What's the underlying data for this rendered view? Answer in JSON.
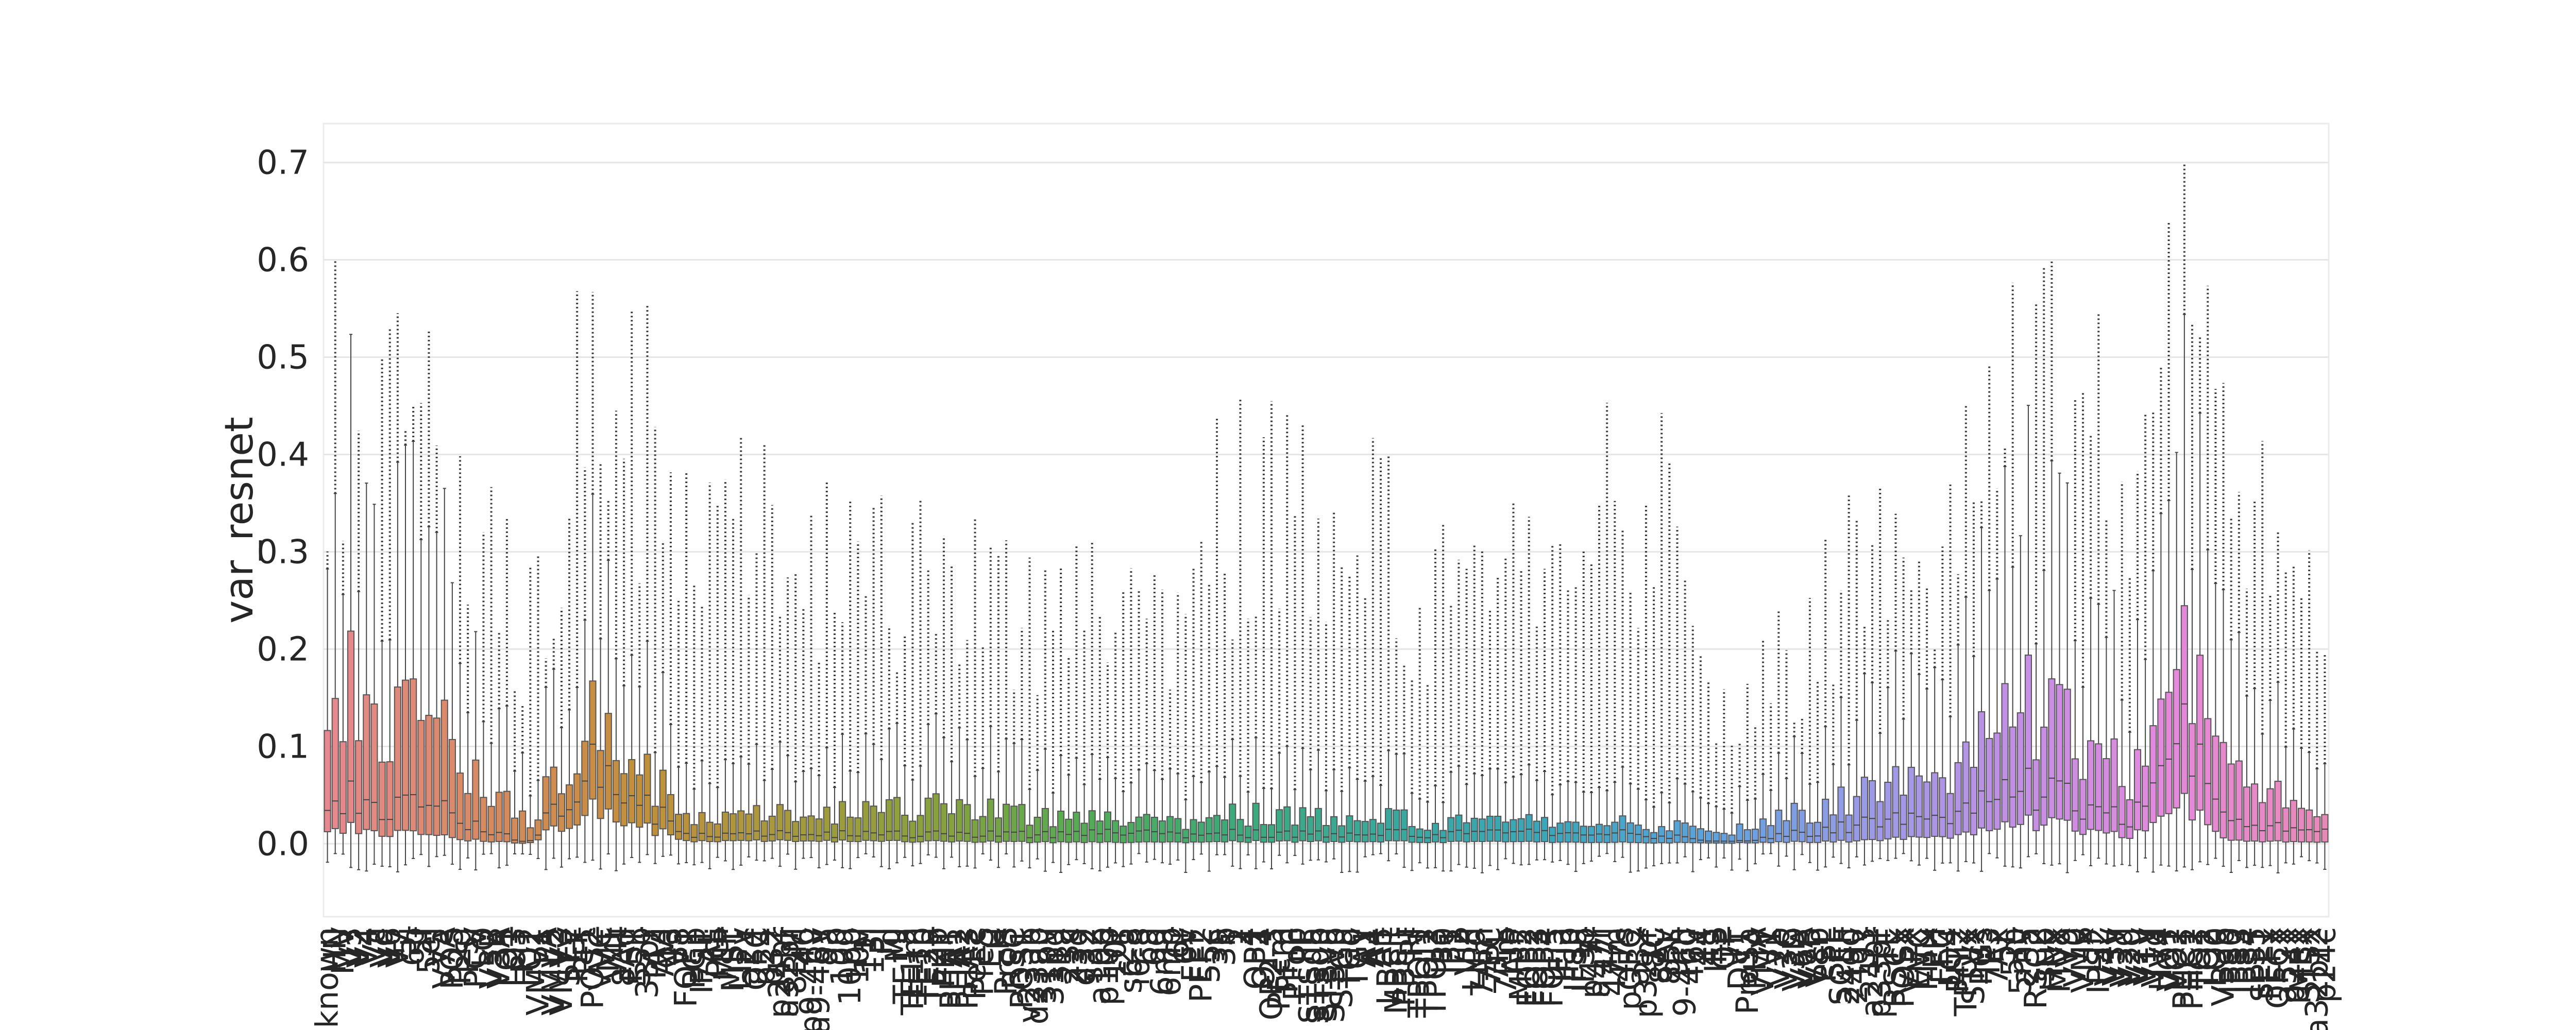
{
  "chart_data": {
    "type": "box",
    "title": "",
    "xlabel": "",
    "ylabel": "var_resnet",
    "ylim": [
      -0.075,
      0.74
    ],
    "yticks": [
      "0.0",
      "0.1",
      "0.2",
      "0.3",
      "0.4",
      "0.5",
      "0.6",
      "0.7"
    ],
    "ytick_values": [
      0.0,
      0.1,
      0.2,
      0.3,
      0.4,
      0.5,
      0.6,
      0.7
    ],
    "grid": true,
    "legend": "none",
    "palette_stops": [
      "#e8888e",
      "#d98a60",
      "#c48f38",
      "#a79a3a",
      "#86a23a",
      "#4fad55",
      "#3aab7e",
      "#37aaa0",
      "#38a8bd",
      "#5aa3e0",
      "#9a9ae8",
      "#c28fe6",
      "#e688dc",
      "#ea88b6"
    ],
    "categories": [
      "known",
      "HN",
      "MV",
      "V3",
      "V2",
      "V4",
      "Vc",
      "Vd",
      "V6",
      "V7",
      "5i",
      "6b",
      "5f",
      "5el",
      "V5",
      "V7A",
      "POS",
      "P2d",
      "PSl",
      "PCV",
      "LO",
      "V3B",
      "V3A",
      "LO1",
      "LO3",
      "PIT",
      "LO2",
      "VMV1",
      "PA",
      "VMV2",
      "VMV3",
      "STV",
      "PEF",
      "PFt",
      "POS2",
      "VVC",
      "MT",
      "V4t",
      "8Ad",
      "FST",
      "55b",
      "33pr",
      "TA2",
      "AVI",
      "43",
      "V8",
      "FOP1",
      "PGp",
      "IPS1",
      "7AL",
      "PGi",
      "MIP",
      "MST",
      "LIPv",
      "a24",
      "OFC",
      "p24",
      "p32",
      "p24pr",
      "a32pr",
      "8BM",
      "46",
      "p9-46v",
      "a9-46v",
      "9a",
      "9p",
      "10d",
      "10pp",
      "10v",
      "11l",
      "13l",
      "PI",
      "Ig",
      "MI",
      "TE1a",
      "TE1m",
      "TE1p",
      "TE2a",
      "TE2p",
      "PHT",
      "PHA1",
      "PHA2",
      "PHA3",
      "PeEc",
      "PreS",
      "EC",
      "H",
      "ProS",
      "RSC",
      "POS1",
      "v23ab",
      "d23ab",
      "31pv",
      "31pd",
      "31a",
      "23c",
      "23d",
      "d32",
      "s32",
      "a10p",
      "p10p",
      "10r",
      "25",
      "s6-8",
      "i6-8",
      "6a",
      "6d",
      "6ma",
      "6mp",
      "6r",
      "6v",
      "FEF",
      "PEF2",
      "55c",
      "3a",
      "3b",
      "1",
      "2",
      "4",
      "OP1",
      "OP4",
      "OP2-3",
      "PFcm",
      "PFm",
      "PFop",
      "PF",
      "STSda",
      "STSdp",
      "STSva",
      "STSvp",
      "STGa",
      "TGd",
      "TGv",
      "A1",
      "A4",
      "A5",
      "LBelt",
      "MBelt",
      "PBelt",
      "RI",
      "TPOJ1",
      "TPOJ2",
      "TPOJ3",
      "IP0",
      "IP1",
      "IP2",
      "VIP",
      "LIPd",
      "7Am",
      "7PC",
      "7PL",
      "7Pm",
      "AIP",
      "MIP2",
      "FOP2",
      "FOP3",
      "FOP4",
      "FOP5",
      "IFJa",
      "IFJp",
      "IFSa",
      "IFSp",
      "p47r",
      "a47r",
      "47l",
      "47m",
      "47s",
      "pOFC",
      "a32",
      "p32pr",
      "8C",
      "8Av",
      "8BL",
      "9m",
      "9-46d",
      "46v",
      "44",
      "45",
      "IFS",
      "OP",
      "TF",
      "DVT",
      "ProSa",
      "PHA",
      "VMV",
      "V1",
      "V2b",
      "V3C",
      "V3D",
      "V6A",
      "V7B",
      "V8b",
      "PSL",
      "SFL",
      "SCEF",
      "24dd",
      "24dv",
      "33",
      "a24pr",
      "p33pr",
      "TE",
      "RSCx",
      "POSx",
      "VIPx",
      "EVC",
      "MTx",
      "PH",
      "FFC",
      "LO4",
      "PIT2",
      "TPOJx",
      "STVx",
      "PGs",
      "IP3",
      "7Ax",
      "5L",
      "5m",
      "5mv",
      "23a",
      "RSC2",
      "sub",
      "HNx",
      "MVx",
      "V9",
      "V10",
      "VMx",
      "LIP",
      "IPS2",
      "V4v",
      "V3v",
      "V3d",
      "V2d",
      "V2v",
      "V1v",
      "V1d",
      "HV4",
      "VO1",
      "VO2",
      "PHC1",
      "PHC2",
      "TO1",
      "TO2",
      "LO0",
      "V3ab",
      "IPS0",
      "IPS3",
      "IPS4",
      "IPS5",
      "SPL1",
      "FEFx",
      "OFCx",
      "a32x",
      "p24x",
      "MBx",
      "STSx",
      "a32pr2",
      "p24c"
    ]
  }
}
